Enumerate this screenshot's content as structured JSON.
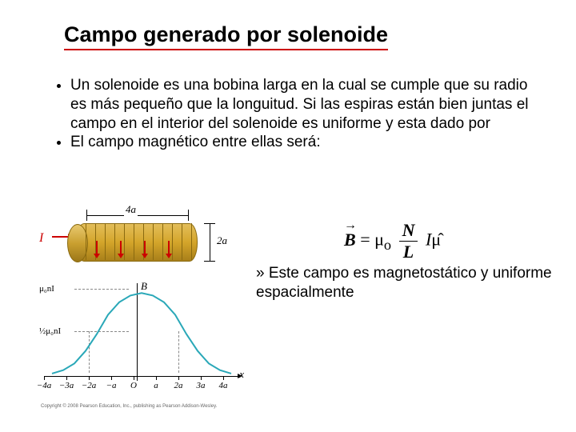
{
  "title": "Campo generado por solenoide",
  "bullets": {
    "b1": "Un solenoide es una bobina larga en la cual se cumple que su radio es más pequeño que la longuitud. Si las espiras están bien juntas el campo en el interior del solenoide es uniforme  y esta dado por",
    "b2": "El campo magnético entre ellas será:"
  },
  "formula": {
    "lhs_sym": "B",
    "mu0": "μ",
    "mu0_sub": "o",
    "num": "N",
    "den": "L",
    "current": "I",
    "hat": "μ̂"
  },
  "subnote": {
    "text": "» Este campo es magnetostático y uniforme espacialmente"
  },
  "diagram": {
    "dim_top": "4a",
    "dim_right": "2a",
    "current_label": "I",
    "coil_color_top": "#e3be5a",
    "coil_color_mid": "#d4a52a",
    "coil_color_bot": "#a87f1a",
    "arrow_color": "#cc0000"
  },
  "plot": {
    "type": "line",
    "y_axis_label": "B",
    "x_axis_label": "x",
    "x_ticks": [
      "−4a",
      "−3a",
      "−2a",
      "−a",
      "O",
      "a",
      "2a",
      "3a",
      "4a"
    ],
    "y_ticks": [
      {
        "label": "μ₀nI",
        "frac": 1.0
      },
      {
        "label": "½μ₀nI",
        "frac": 0.5
      }
    ],
    "xlim": [
      -4.5,
      4.5
    ],
    "ylim": [
      0,
      1.05
    ],
    "curve_color": "#2aa8b8",
    "curve_width": 2,
    "grid_color": "#888888",
    "background_color": "#ffffff",
    "dashed_y_at": [
      1.0,
      0.5
    ],
    "dashed_x_at": [
      -2,
      2
    ],
    "points": [
      {
        "x": -4.0,
        "y": 0.03
      },
      {
        "x": -3.5,
        "y": 0.07
      },
      {
        "x": -3.0,
        "y": 0.15
      },
      {
        "x": -2.5,
        "y": 0.3
      },
      {
        "x": -2.0,
        "y": 0.5
      },
      {
        "x": -1.5,
        "y": 0.73
      },
      {
        "x": -1.0,
        "y": 0.88
      },
      {
        "x": -0.5,
        "y": 0.96
      },
      {
        "x": 0.0,
        "y": 0.99
      },
      {
        "x": 0.5,
        "y": 0.96
      },
      {
        "x": 1.0,
        "y": 0.88
      },
      {
        "x": 1.5,
        "y": 0.73
      },
      {
        "x": 2.0,
        "y": 0.5
      },
      {
        "x": 2.5,
        "y": 0.3
      },
      {
        "x": 3.0,
        "y": 0.15
      },
      {
        "x": 3.5,
        "y": 0.07
      },
      {
        "x": 4.0,
        "y": 0.03
      }
    ]
  },
  "copyright": "Copyright © 2008 Pearson Education, Inc., publishing as Pearson Addison-Wesley."
}
